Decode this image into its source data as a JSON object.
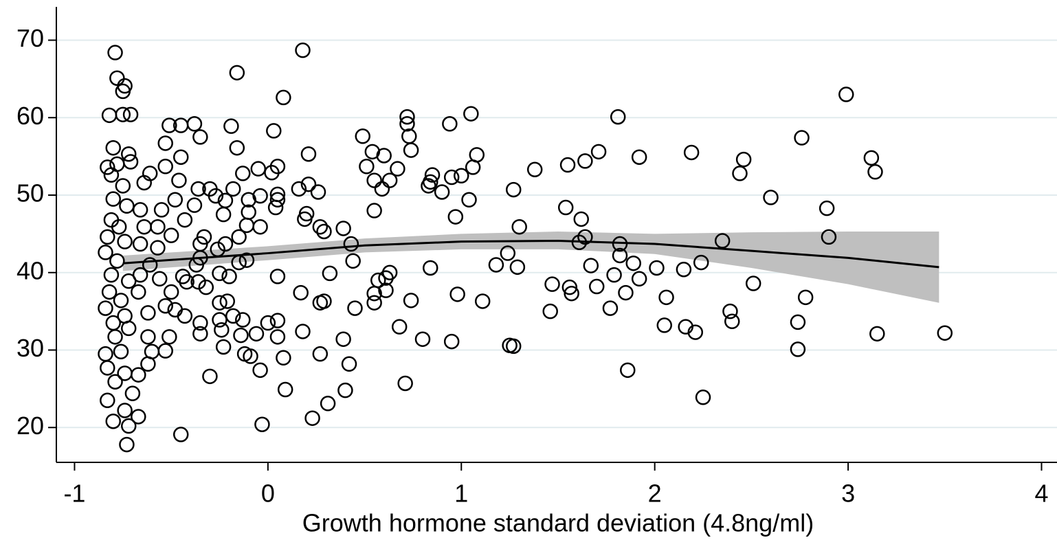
{
  "chart_data": {
    "type": "scatter",
    "xlabel": "Growth hormone standard deviation (4.8ng/ml)",
    "xlim": [
      -1.094,
      4.08
    ],
    "ylim": [
      15.5,
      74.3
    ],
    "xticks": [
      -1,
      0,
      1,
      2,
      3,
      4
    ],
    "yticks": [
      20,
      30,
      40,
      50,
      60,
      70
    ],
    "grid": true,
    "color": "#000000",
    "x": [
      -0.79,
      -0.78,
      -0.74,
      -0.75,
      -0.82,
      -0.75,
      -0.71,
      -0.8,
      -0.72,
      -0.71,
      -0.83,
      -0.78,
      -0.81,
      -0.75,
      -0.8,
      -0.73,
      -0.81,
      -0.77,
      -0.83,
      -0.74,
      -0.84,
      -0.78,
      -0.81,
      -0.72,
      -0.82,
      -0.76,
      -0.84,
      -0.74,
      -0.8,
      -0.72,
      -0.79,
      -0.84,
      -0.76,
      -0.83,
      -0.74,
      -0.79,
      -0.83,
      -0.74,
      -0.8,
      -0.72,
      -0.73,
      -0.67,
      -0.7,
      -0.67,
      -0.62,
      -0.6,
      -0.62,
      -0.62,
      -0.67,
      -0.66,
      -0.61,
      -0.66,
      -0.64,
      -0.66,
      -0.64,
      -0.61,
      -0.55,
      -0.57,
      -0.57,
      -0.56,
      -0.53,
      -0.51,
      -0.53,
      -0.53,
      -0.51,
      -0.45,
      -0.38,
      -0.35,
      -0.45,
      -0.53,
      -0.46,
      -0.48,
      -0.43,
      -0.5,
      -0.5,
      -0.48,
      -0.43,
      -0.44,
      -0.42,
      -0.45,
      -0.37,
      -0.35,
      -0.33,
      -0.35,
      -0.36,
      -0.38,
      -0.36,
      -0.35,
      -0.35,
      -0.32,
      -0.3,
      -0.3,
      -0.27,
      -0.22,
      -0.23,
      -0.26,
      -0.22,
      -0.25,
      -0.2,
      -0.25,
      -0.21,
      -0.25,
      -0.24,
      -0.23,
      -0.19,
      -0.16,
      -0.16,
      -0.18,
      -0.15,
      -0.15,
      -0.18,
      -0.14,
      -0.13,
      -0.12,
      -0.13,
      -0.1,
      -0.1,
      -0.11,
      -0.11,
      -0.09,
      -0.06,
      -0.05,
      -0.04,
      -0.04,
      -0.04,
      -0.03,
      0.0,
      0.03,
      0.02,
      0.05,
      0.05,
      0.05,
      0.04,
      0.05,
      0.05,
      0.05,
      0.08,
      0.08,
      0.09,
      0.16,
      0.17,
      0.18,
      0.18,
      0.19,
      0.2,
      0.21,
      0.21,
      0.23,
      0.26,
      0.27,
      0.27,
      0.27,
      0.29,
      0.29,
      0.31,
      0.32,
      0.39,
      0.39,
      0.4,
      0.42,
      0.43,
      0.44,
      0.45,
      0.49,
      0.51,
      0.54,
      0.55,
      0.55,
      0.55,
      0.55,
      0.57,
      0.59,
      0.6,
      0.61,
      0.61,
      0.63,
      0.63,
      0.67,
      0.68,
      0.71,
      0.72,
      0.72,
      0.73,
      0.74,
      0.74,
      0.8,
      0.83,
      0.84,
      0.85,
      0.84,
      0.9,
      0.94,
      0.95,
      0.95,
      0.97,
      0.98,
      1.0,
      1.04,
      1.05,
      1.06,
      1.08,
      1.11,
      1.18,
      1.24,
      1.25,
      1.27,
      1.27,
      1.29,
      1.3,
      1.38,
      1.46,
      1.47,
      1.54,
      1.55,
      1.56,
      1.57,
      1.61,
      1.62,
      1.64,
      1.64,
      1.67,
      1.7,
      1.71,
      1.77,
      1.79,
      1.81,
      1.82,
      1.82,
      1.85,
      1.86,
      1.89,
      1.92,
      1.92,
      2.01,
      2.06,
      2.05,
      2.15,
      2.16,
      2.19,
      2.21,
      2.24,
      2.25,
      2.35,
      2.39,
      2.4,
      2.44,
      2.46,
      2.51,
      2.6,
      2.74,
      2.74,
      2.76,
      2.78,
      2.89,
      2.9,
      2.99,
      3.12,
      3.14,
      3.15,
      3.5
    ],
    "values": [
      68.4,
      65.1,
      64.1,
      63.4,
      60.3,
      60.4,
      60.4,
      56.1,
      55.3,
      54.3,
      53.6,
      54.0,
      52.6,
      51.2,
      49.5,
      48.6,
      46.8,
      45.9,
      44.6,
      44.0,
      42.6,
      41.5,
      39.7,
      38.9,
      37.5,
      36.4,
      35.4,
      34.4,
      33.5,
      32.8,
      31.7,
      29.5,
      29.8,
      27.7,
      27.0,
      25.9,
      23.5,
      22.2,
      20.8,
      20.2,
      17.8,
      21.4,
      24.4,
      26.8,
      28.2,
      29.8,
      31.7,
      34.8,
      37.5,
      39.7,
      41.0,
      43.7,
      45.9,
      48.1,
      51.6,
      52.8,
      48.1,
      45.9,
      43.2,
      39.2,
      35.7,
      31.7,
      29.9,
      53.7,
      59.0,
      59.0,
      59.2,
      57.5,
      54.9,
      56.7,
      51.9,
      49.4,
      46.8,
      44.8,
      37.5,
      35.2,
      34.4,
      39.5,
      38.8,
      19.1,
      41.0,
      41.9,
      44.6,
      43.7,
      50.8,
      48.7,
      38.8,
      33.5,
      32.1,
      38.1,
      26.6,
      50.8,
      49.9,
      49.3,
      47.5,
      43.0,
      43.7,
      39.9,
      39.5,
      36.1,
      36.3,
      33.9,
      32.6,
      30.4,
      58.9,
      65.8,
      56.1,
      50.8,
      44.6,
      41.3,
      34.4,
      31.9,
      33.9,
      29.5,
      52.8,
      49.4,
      47.8,
      46.1,
      41.6,
      29.2,
      32.1,
      53.4,
      49.9,
      45.9,
      27.4,
      20.4,
      33.5,
      58.3,
      52.9,
      53.7,
      50.1,
      49.4,
      48.4,
      39.5,
      33.8,
      31.7,
      29.0,
      62.6,
      24.9,
      50.8,
      37.4,
      68.7,
      32.4,
      46.9,
      47.6,
      55.3,
      51.4,
      21.2,
      50.4,
      29.5,
      45.9,
      36.1,
      45.3,
      36.3,
      23.1,
      39.9,
      45.7,
      31.4,
      24.8,
      28.2,
      43.7,
      41.5,
      35.4,
      57.6,
      53.7,
      55.6,
      51.9,
      48.0,
      36.1,
      37.3,
      39.0,
      50.8,
      55.1,
      39.3,
      37.7,
      40.0,
      51.9,
      53.4,
      33.0,
      25.7,
      60.1,
      59.2,
      57.6,
      55.8,
      36.4,
      31.4,
      51.2,
      51.7,
      52.6,
      40.6,
      50.4,
      59.2,
      52.3,
      31.1,
      47.2,
      37.2,
      52.5,
      49.4,
      60.5,
      53.6,
      55.2,
      36.3,
      41.0,
      42.5,
      30.6,
      30.5,
      50.7,
      40.7,
      45.9,
      53.3,
      35.0,
      38.5,
      48.4,
      53.9,
      38.1,
      37.3,
      43.9,
      46.9,
      54.4,
      44.6,
      40.9,
      38.2,
      55.6,
      35.4,
      39.7,
      60.1,
      43.7,
      42.2,
      37.4,
      27.4,
      41.2,
      39.2,
      54.9,
      40.6,
      36.8,
      33.2,
      40.4,
      33.0,
      55.5,
      32.3,
      41.3,
      23.9,
      44.1,
      35.0,
      33.7,
      52.8,
      54.6,
      38.6,
      49.7,
      33.6,
      30.1,
      57.4,
      36.8,
      48.3,
      44.6,
      63.0,
      54.8,
      53.0,
      32.1,
      32.2
    ],
    "fit": {
      "color": "#000000",
      "band_color": "#bfbfbf",
      "x": [
        -0.75,
        0,
        0.5,
        1,
        1.5,
        2,
        2.5,
        3,
        3.47
      ],
      "values": [
        41.2,
        42.5,
        43.5,
        44.0,
        44.1,
        43.7,
        42.8,
        41.9,
        40.7
      ],
      "lower": [
        40.2,
        41.6,
        42.6,
        43.0,
        43.0,
        42.4,
        40.6,
        38.5,
        36.1
      ],
      "upper": [
        42.2,
        43.4,
        44.4,
        45.0,
        45.3,
        45.0,
        45.2,
        45.3,
        45.3
      ]
    }
  }
}
